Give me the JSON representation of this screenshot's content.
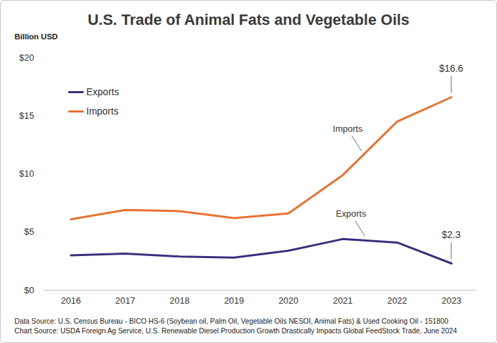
{
  "chart_data": {
    "type": "line",
    "title": "U.S. Trade of Animal Fats and Vegetable Oils",
    "y_label": "Billion USD",
    "x": [
      2016,
      2017,
      2018,
      2019,
      2020,
      2021,
      2022,
      2023
    ],
    "series": [
      {
        "name": "Exports",
        "color": "#3d2c7c",
        "values": [
          3.0,
          3.15,
          2.9,
          2.8,
          3.4,
          4.4,
          4.1,
          2.3
        ]
      },
      {
        "name": "Imports",
        "color": "#e8712f",
        "values": [
          6.1,
          6.9,
          6.8,
          6.2,
          6.6,
          9.9,
          14.5,
          16.6
        ]
      }
    ],
    "xlim": [
      2015.5,
      2023.45
    ],
    "xticks": [
      2016,
      2017,
      2018,
      2019,
      2020,
      2021,
      2022,
      2023
    ],
    "ylim": [
      0,
      20
    ],
    "yticks": [
      {
        "value": 0,
        "label": "$0"
      },
      {
        "value": 5,
        "label": "$5"
      },
      {
        "value": 10,
        "label": "$10"
      },
      {
        "value": 15,
        "label": "$15"
      },
      {
        "value": 20,
        "label": "$20"
      }
    ],
    "grid": false,
    "legend": "top-left",
    "annotations": [
      {
        "text": "$16.6",
        "x": 2023,
        "y": 16.6,
        "kind": "value"
      },
      {
        "text": "$2.3",
        "x": 2023,
        "y": 2.3,
        "kind": "value"
      },
      {
        "text": "Imports",
        "x": 2021.35,
        "y": 11.7,
        "kind": "callout"
      },
      {
        "text": "Exports",
        "x": 2021.41,
        "y": 4.4,
        "kind": "callout"
      }
    ],
    "notes": [
      "Data Source: U.S. Census Bureau - BICO HS-6 (Soybean oil, Palm Oil, Vegetable Oils NESOI, Animal Fats) & Used Cooking Oil - 151800",
      "Chart Source: USDA Foreign Ag Service, U.S. Renewable Diesel Production Growth Drastically Impacts Global FeedStock Trade, June 2024"
    ]
  }
}
